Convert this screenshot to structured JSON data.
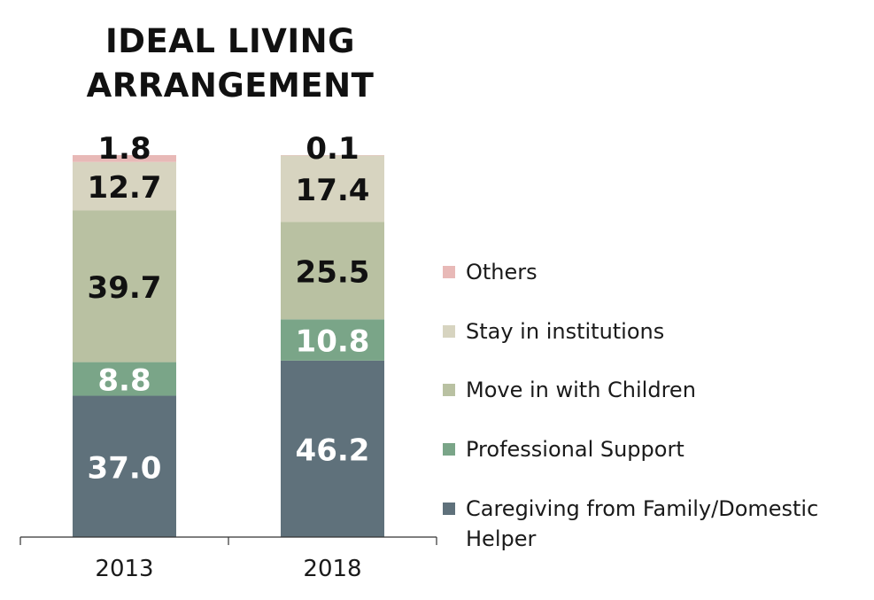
{
  "chart_data": {
    "type": "bar",
    "stacked": true,
    "title": [
      "IDEAL LIVING",
      "ARRANGEMENT"
    ],
    "categories": [
      "2013",
      "2018"
    ],
    "xlabel": "",
    "ylabel": "",
    "ylim": [
      0,
      100
    ],
    "grid": false,
    "legend_position": "right",
    "series": [
      {
        "name": "Caregiving from Family/Domestic Helper",
        "color": "#5f717b",
        "label_color": "#ffffff",
        "values": [
          37.0,
          46.2
        ],
        "labels": [
          "37.0",
          "46.2"
        ]
      },
      {
        "name": "Professional Support",
        "color": "#7aa588",
        "label_color": "#ffffff",
        "values": [
          8.8,
          10.8
        ],
        "labels": [
          "8.8",
          "10.8"
        ]
      },
      {
        "name": "Move in with Children",
        "color": "#b9c1a2",
        "label_color": "#111111",
        "values": [
          39.7,
          25.5
        ],
        "labels": [
          "39.7",
          "25.5"
        ]
      },
      {
        "name": "Stay in institutions",
        "color": "#d7d4c0",
        "label_color": "#111111",
        "values": [
          12.7,
          17.4
        ],
        "labels": [
          "12.7",
          "17.4"
        ]
      },
      {
        "name": "Others",
        "color": "#e8b9b7",
        "label_color": "#111111",
        "values": [
          1.8,
          0.1
        ],
        "labels": [
          "1.8",
          "0.1"
        ]
      }
    ],
    "legend_order": [
      "Others",
      "Stay in institutions",
      "Move in with Children",
      "Professional Support",
      "Caregiving from Family/Domestic Helper"
    ]
  }
}
